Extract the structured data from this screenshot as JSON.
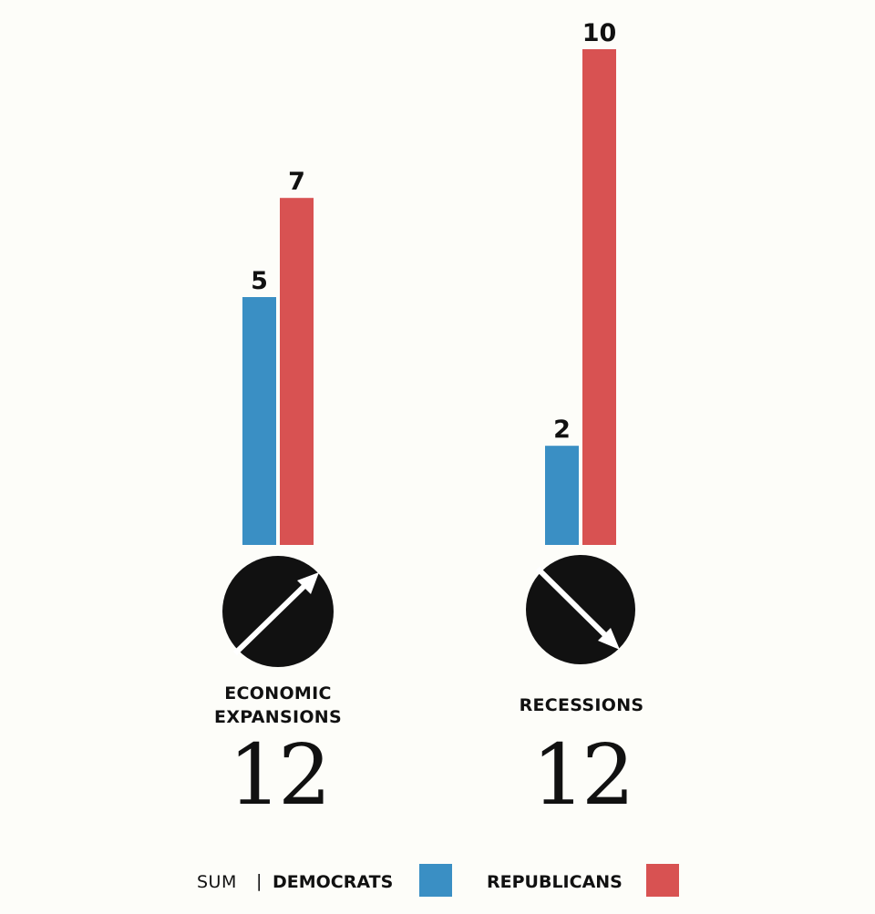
{
  "colors": {
    "democrats": "#3a8fc4",
    "republicans": "#d85252",
    "icon": "#111111",
    "background": "#fdfdf9"
  },
  "legend": {
    "sum_label": "SUM",
    "separator": "|",
    "democrats_label": "DEMOCRATS",
    "republicans_label": "REPUBLICANS"
  },
  "chart_data": {
    "type": "bar",
    "categories": [
      "ECONOMIC EXPANSIONS",
      "RECESSIONS"
    ],
    "category_lines": [
      [
        "ECONOMIC",
        "EXPANSIONS"
      ],
      [
        "RECESSIONS"
      ]
    ],
    "category_icons": [
      "arrow-up-right-circle-icon",
      "arrow-down-right-circle-icon"
    ],
    "totals": [
      "12",
      "12"
    ],
    "series": [
      {
        "name": "DEMOCRATS",
        "values": [
          5,
          2
        ]
      },
      {
        "name": "REPUBLICANS",
        "values": [
          7,
          10
        ]
      }
    ],
    "ylim": [
      0,
      10
    ],
    "grid": false,
    "legend_position": "bottom"
  }
}
